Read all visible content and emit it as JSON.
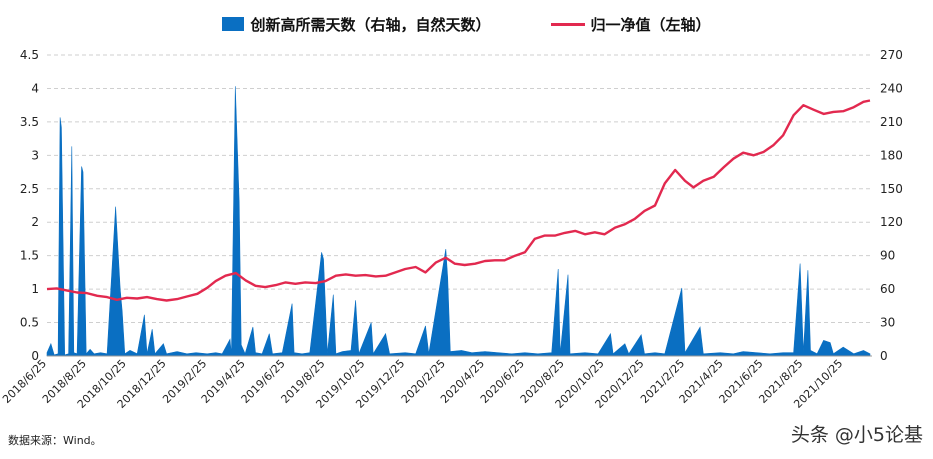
{
  "legend": {
    "bars_label": "创新高所需天数（右轴，自然天数）",
    "line_label": "归一净值（左轴）"
  },
  "source_text": "数据来源：Wind。",
  "watermark_text": "头条 @小5论基",
  "colors": {
    "bars": "#0a6fc2",
    "line": "#e2294f",
    "grid": "#cfcfcf",
    "axis": "#999999"
  },
  "chart_data": {
    "type": "line+area",
    "x_tick_labels": [
      "2018/6/25",
      "2018/8/25",
      "2018/10/25",
      "2018/12/25",
      "2019/2/25",
      "2019/4/25",
      "2019/6/25",
      "2019/8/25",
      "2019/10/25",
      "2019/12/25",
      "2020/2/25",
      "2020/4/25",
      "2020/6/25",
      "2020/8/25",
      "2020/10/25",
      "2020/12/25",
      "2021/2/25",
      "2021/4/25",
      "2021/6/25",
      "2021/8/25",
      "2021/10/25"
    ],
    "left_axis": {
      "ylim": [
        0,
        4.5
      ],
      "ticks": [
        "0",
        "0.5",
        "1",
        "1.5",
        "2",
        "2.5",
        "3",
        "3.5",
        "4",
        "4.5"
      ]
    },
    "right_axis": {
      "ylim": [
        0,
        270
      ],
      "ticks": [
        "0",
        "30",
        "60",
        "90",
        "120",
        "150",
        "180",
        "210",
        "240",
        "270"
      ]
    },
    "series": [
      {
        "name": "归一净值（左轴）",
        "axis": "left",
        "kind": "line",
        "points": [
          [
            "2018/6/25",
            1.0
          ],
          [
            "2018/7/10",
            1.01
          ],
          [
            "2018/7/25",
            0.98
          ],
          [
            "2018/8/10",
            0.95
          ],
          [
            "2018/8/25",
            0.94
          ],
          [
            "2018/9/10",
            0.9
          ],
          [
            "2018/9/25",
            0.88
          ],
          [
            "2018/10/10",
            0.84
          ],
          [
            "2018/10/25",
            0.87
          ],
          [
            "2018/11/10",
            0.86
          ],
          [
            "2018/11/25",
            0.88
          ],
          [
            "2018/12/10",
            0.85
          ],
          [
            "2018/12/25",
            0.83
          ],
          [
            "2019/1/10",
            0.85
          ],
          [
            "2019/1/25",
            0.89
          ],
          [
            "2019/2/10",
            0.93
          ],
          [
            "2019/2/25",
            1.02
          ],
          [
            "2019/3/10",
            1.12
          ],
          [
            "2019/3/25",
            1.2
          ],
          [
            "2019/4/10",
            1.24
          ],
          [
            "2019/4/25",
            1.13
          ],
          [
            "2019/5/10",
            1.05
          ],
          [
            "2019/5/25",
            1.03
          ],
          [
            "2019/6/10",
            1.06
          ],
          [
            "2019/6/25",
            1.1
          ],
          [
            "2019/7/10",
            1.08
          ],
          [
            "2019/7/25",
            1.1
          ],
          [
            "2019/8/10",
            1.09
          ],
          [
            "2019/8/25",
            1.12
          ],
          [
            "2019/9/10",
            1.2
          ],
          [
            "2019/9/25",
            1.22
          ],
          [
            "2019/10/10",
            1.2
          ],
          [
            "2019/10/25",
            1.21
          ],
          [
            "2019/11/10",
            1.19
          ],
          [
            "2019/11/25",
            1.2
          ],
          [
            "2019/12/10",
            1.25
          ],
          [
            "2019/12/25",
            1.3
          ],
          [
            "2020/1/10",
            1.33
          ],
          [
            "2020/1/25",
            1.25
          ],
          [
            "2020/2/10",
            1.4
          ],
          [
            "2020/2/25",
            1.47
          ],
          [
            "2020/3/10",
            1.38
          ],
          [
            "2020/3/25",
            1.36
          ],
          [
            "2020/4/10",
            1.38
          ],
          [
            "2020/4/25",
            1.42
          ],
          [
            "2020/5/10",
            1.43
          ],
          [
            "2020/5/25",
            1.43
          ],
          [
            "2020/6/10",
            1.5
          ],
          [
            "2020/6/25",
            1.55
          ],
          [
            "2020/7/10",
            1.75
          ],
          [
            "2020/7/25",
            1.8
          ],
          [
            "2020/8/10",
            1.8
          ],
          [
            "2020/8/25",
            1.84
          ],
          [
            "2020/9/10",
            1.87
          ],
          [
            "2020/9/25",
            1.82
          ],
          [
            "2020/10/10",
            1.85
          ],
          [
            "2020/10/25",
            1.82
          ],
          [
            "2020/11/10",
            1.92
          ],
          [
            "2020/11/25",
            1.97
          ],
          [
            "2020/12/10",
            2.05
          ],
          [
            "2020/12/25",
            2.17
          ],
          [
            "2021/1/10",
            2.25
          ],
          [
            "2021/1/25",
            2.58
          ],
          [
            "2021/2/10",
            2.78
          ],
          [
            "2021/2/25",
            2.62
          ],
          [
            "2021/3/10",
            2.52
          ],
          [
            "2021/3/25",
            2.62
          ],
          [
            "2021/4/10",
            2.68
          ],
          [
            "2021/4/25",
            2.82
          ],
          [
            "2021/5/10",
            2.95
          ],
          [
            "2021/5/25",
            3.04
          ],
          [
            "2021/6/10",
            3.0
          ],
          [
            "2021/6/25",
            3.05
          ],
          [
            "2021/7/10",
            3.15
          ],
          [
            "2021/7/25",
            3.3
          ],
          [
            "2021/8/10",
            3.6
          ],
          [
            "2021/8/25",
            3.75
          ],
          [
            "2021/9/10",
            3.68
          ],
          [
            "2021/9/25",
            3.62
          ],
          [
            "2021/10/10",
            3.65
          ],
          [
            "2021/10/25",
            3.66
          ],
          [
            "2021/11/10",
            3.72
          ],
          [
            "2021/11/25",
            3.8
          ],
          [
            "2021/12/5",
            3.82
          ]
        ]
      },
      {
        "name": "创新高所需天数（右轴，自然天数）",
        "axis": "right",
        "kind": "area",
        "points": [
          [
            "2018/6/25",
            3
          ],
          [
            "2018/7/1",
            11
          ],
          [
            "2018/7/6",
            1
          ],
          [
            "2018/7/12",
            2
          ],
          [
            "2018/7/15",
            214
          ],
          [
            "2018/7/17",
            205
          ],
          [
            "2018/7/22",
            1
          ],
          [
            "2018/7/28",
            2
          ],
          [
            "2018/8/2",
            188
          ],
          [
            "2018/8/5",
            3
          ],
          [
            "2018/8/10",
            2
          ],
          [
            "2018/8/17",
            170
          ],
          [
            "2018/8/19",
            165
          ],
          [
            "2018/8/24",
            2
          ],
          [
            "2018/8/30",
            6
          ],
          [
            "2018/9/5",
            2
          ],
          [
            "2018/9/15",
            3
          ],
          [
            "2018/9/25",
            2
          ],
          [
            "2018/10/8",
            134
          ],
          [
            "2018/10/15",
            60
          ],
          [
            "2018/10/18",
            40
          ],
          [
            "2018/10/22",
            2
          ],
          [
            "2018/10/30",
            5
          ],
          [
            "2018/11/10",
            2
          ],
          [
            "2018/11/21",
            37
          ],
          [
            "2018/11/25",
            2
          ],
          [
            "2018/12/3",
            24
          ],
          [
            "2018/12/7",
            2
          ],
          [
            "2018/12/20",
            11
          ],
          [
            "2018/12/25",
            2
          ],
          [
            "2019/1/10",
            4
          ],
          [
            "2019/1/25",
            2
          ],
          [
            "2019/2/8",
            3
          ],
          [
            "2019/2/25",
            2
          ],
          [
            "2019/3/10",
            3
          ],
          [
            "2019/3/20",
            2
          ],
          [
            "2019/4/1",
            15
          ],
          [
            "2019/4/3",
            1
          ],
          [
            "2019/4/9",
            242
          ],
          [
            "2019/4/15",
            138
          ],
          [
            "2019/4/18",
            10
          ],
          [
            "2019/4/24",
            2
          ],
          [
            "2019/5/6",
            26
          ],
          [
            "2019/5/10",
            3
          ],
          [
            "2019/5/20",
            2
          ],
          [
            "2019/5/31",
            20
          ],
          [
            "2019/6/5",
            2
          ],
          [
            "2019/6/20",
            3
          ],
          [
            "2019/7/5",
            47
          ],
          [
            "2019/7/8",
            3
          ],
          [
            "2019/7/20",
            2
          ],
          [
            "2019/8/1",
            3
          ],
          [
            "2019/8/19",
            93
          ],
          [
            "2019/8/22",
            87
          ],
          [
            "2019/8/28",
            2
          ],
          [
            "2019/9/6",
            55
          ],
          [
            "2019/9/10",
            2
          ],
          [
            "2019/9/20",
            4
          ],
          [
            "2019/10/3",
            5
          ],
          [
            "2019/10/10",
            50
          ],
          [
            "2019/10/15",
            2
          ],
          [
            "2019/11/3",
            30
          ],
          [
            "2019/11/6",
            2
          ],
          [
            "2019/11/25",
            20
          ],
          [
            "2019/12/1",
            2
          ],
          [
            "2019/12/25",
            3
          ],
          [
            "2020/1/10",
            2
          ],
          [
            "2020/1/25",
            27
          ],
          [
            "2020/1/30",
            2
          ],
          [
            "2020/2/25",
            96
          ],
          [
            "2020/2/28",
            70
          ],
          [
            "2020/3/3",
            4
          ],
          [
            "2020/3/20",
            5
          ],
          [
            "2020/4/5",
            3
          ],
          [
            "2020/4/25",
            4
          ],
          [
            "2020/5/15",
            3
          ],
          [
            "2020/6/5",
            2
          ],
          [
            "2020/6/25",
            3
          ],
          [
            "2020/7/15",
            2
          ],
          [
            "2020/8/5",
            3
          ],
          [
            "2020/8/15",
            78
          ],
          [
            "2020/8/18",
            2
          ],
          [
            "2020/8/30",
            73
          ],
          [
            "2020/9/2",
            2
          ],
          [
            "2020/9/25",
            3
          ],
          [
            "2020/10/15",
            2
          ],
          [
            "2020/11/3",
            20
          ],
          [
            "2020/11/7",
            2
          ],
          [
            "2020/11/25",
            11
          ],
          [
            "2020/12/1",
            2
          ],
          [
            "2020/12/20",
            19
          ],
          [
            "2020/12/25",
            2
          ],
          [
            "2021/1/10",
            3
          ],
          [
            "2021/1/25",
            2
          ],
          [
            "2021/2/20",
            61
          ],
          [
            "2021/2/25",
            3
          ],
          [
            "2021/3/20",
            26
          ],
          [
            "2021/3/25",
            2
          ],
          [
            "2021/4/20",
            3
          ],
          [
            "2021/5/10",
            2
          ],
          [
            "2021/5/25",
            4
          ],
          [
            "2021/6/15",
            3
          ],
          [
            "2021/7/5",
            2
          ],
          [
            "2021/7/25",
            3
          ],
          [
            "2021/8/10",
            3
          ],
          [
            "2021/8/20",
            83
          ],
          [
            "2021/8/25",
            3
          ],
          [
            "2021/9/1",
            77
          ],
          [
            "2021/9/5",
            5
          ],
          [
            "2021/9/15",
            2
          ],
          [
            "2021/9/25",
            14
          ],
          [
            "2021/10/5",
            12
          ],
          [
            "2021/10/10",
            2
          ],
          [
            "2021/10/25",
            8
          ],
          [
            "2021/11/10",
            2
          ],
          [
            "2021/11/25",
            5
          ],
          [
            "2021/12/5",
            2
          ]
        ]
      }
    ]
  }
}
